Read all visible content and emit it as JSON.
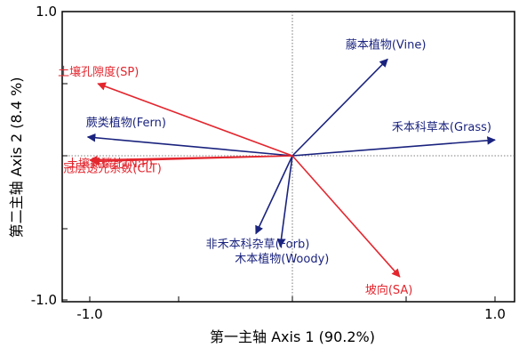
{
  "chart_data": {
    "type": "biplot",
    "xlabel": "第一主轴 Axis 1 (90.2%)",
    "ylabel": "第二主轴 Axis 2 (8.4 %)",
    "xlim": [
      -1.0,
      1.0
    ],
    "ylim": [
      -1.0,
      1.0
    ],
    "x_ticks": [
      {
        "value": -1.0,
        "label": "-1.0"
      },
      {
        "value": 1.0,
        "label": "1.0"
      }
    ],
    "y_ticks": [
      {
        "value": 1.0,
        "label": "1.0"
      },
      {
        "value": -1.0,
        "label": "-1.0"
      }
    ],
    "grid": false,
    "reference_lines": "dotted lines at x = 0 and y = 0",
    "colors": {
      "species": "#1a237e",
      "environment": "#e3262e",
      "axes": "#000000"
    },
    "species_vectors": [
      {
        "label": "藤本植物(Vine)",
        "x": 0.47,
        "y": 0.67
      },
      {
        "label": "禾本科草本(Grass)",
        "x": 1.0,
        "y": 0.11
      },
      {
        "label": "蕨类植物(Fern)",
        "x": -1.01,
        "y": 0.13
      },
      {
        "label": "非禾本科杂草(Forb)",
        "x": -0.18,
        "y": -0.54
      },
      {
        "label": "木本植物(Woody)",
        "x": -0.06,
        "y": -0.63
      }
    ],
    "environment_vectors": [
      {
        "label": "土壤孔隙度(SP)",
        "x": -0.96,
        "y": 0.5
      },
      {
        "label": "土壤氮磷比(N:P)",
        "x": -1.0,
        "y": -0.03
      },
      {
        "label": "冠层透光系数(CLT)",
        "x": -0.99,
        "y": -0.04
      },
      {
        "label": "坡向(SA)",
        "x": 0.53,
        "y": -0.84
      }
    ]
  }
}
